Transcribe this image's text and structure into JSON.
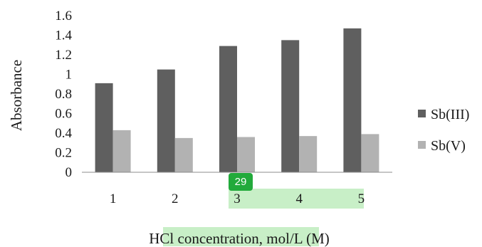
{
  "chart_data": {
    "type": "bar",
    "categories": [
      "1",
      "2",
      "3",
      "4",
      "5"
    ],
    "series": [
      {
        "name": "Sb(III)",
        "values": [
          0.91,
          1.05,
          1.29,
          1.35,
          1.47
        ],
        "color": "#5f5f5f"
      },
      {
        "name": "Sb(V)",
        "values": [
          0.43,
          0.35,
          0.36,
          0.37,
          0.39
        ],
        "color": "#b2b2b2"
      }
    ],
    "ylabel": "Absorbance",
    "xlabel": "HCl concentration, mol/L (M)",
    "ylim": [
      0,
      1.6
    ],
    "yticks": [
      "0",
      "0.2",
      "0.4",
      "0.6",
      "0.8",
      "1",
      "1.2",
      "1.4",
      "1.6"
    ],
    "grid": false,
    "legend": "right"
  },
  "highlight_color": "#c8efc7",
  "badge": {
    "label": "29",
    "color": "#22aa3b"
  }
}
